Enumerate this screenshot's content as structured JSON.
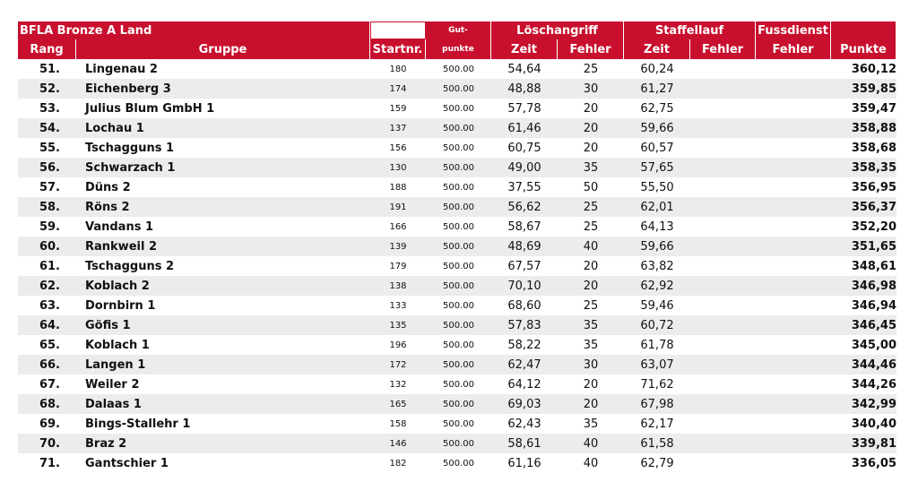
{
  "header": {
    "title": "BFLA Bronze A Land",
    "gut_top": "Gut-",
    "loeschangriff": "Löschangriff",
    "staffellauf": "Staffellauf",
    "fussdienst": "Fussdienst",
    "columns": [
      "Rang",
      "Gruppe",
      "Startnr.",
      "punkte",
      "Zeit",
      "Fehler",
      "Zeit",
      "Fehler",
      "Fehler",
      "Punkte"
    ]
  },
  "table": {
    "rows": [
      [
        "51.",
        "Lingenau 2",
        "180",
        "500.00",
        "54,64",
        "25",
        "60,24",
        "360,12"
      ],
      [
        "52.",
        "Eichenberg 3",
        "174",
        "500.00",
        "48,88",
        "30",
        "61,27",
        "359,85"
      ],
      [
        "53.",
        "Julius Blum GmbH 1",
        "159",
        "500.00",
        "57,78",
        "20",
        "62,75",
        "359,47"
      ],
      [
        "54.",
        "Lochau 1",
        "137",
        "500.00",
        "61,46",
        "20",
        "59,66",
        "358,88"
      ],
      [
        "55.",
        "Tschagguns 1",
        "156",
        "500.00",
        "60,75",
        "20",
        "60,57",
        "358,68"
      ],
      [
        "56.",
        "Schwarzach 1",
        "130",
        "500.00",
        "49,00",
        "35",
        "57,65",
        "358,35"
      ],
      [
        "57.",
        "Düns 2",
        "188",
        "500.00",
        "37,55",
        "50",
        "55,50",
        "356,95"
      ],
      [
        "58.",
        "Röns 2",
        "191",
        "500.00",
        "56,62",
        "25",
        "62,01",
        "356,37"
      ],
      [
        "59.",
        "Vandans 1",
        "166",
        "500.00",
        "58,67",
        "25",
        "64,13",
        "352,20"
      ],
      [
        "60.",
        "Rankweil 2",
        "139",
        "500.00",
        "48,69",
        "40",
        "59,66",
        "351,65"
      ],
      [
        "61.",
        "Tschagguns 2",
        "179",
        "500.00",
        "67,57",
        "20",
        "63,82",
        "348,61"
      ],
      [
        "62.",
        "Koblach 2",
        "138",
        "500.00",
        "70,10",
        "20",
        "62,92",
        "346,98"
      ],
      [
        "63.",
        "Dornbirn 1",
        "133",
        "500.00",
        "68,60",
        "25",
        "59,46",
        "346,94"
      ],
      [
        "64.",
        "Göfis 1",
        "135",
        "500.00",
        "57,83",
        "35",
        "60,72",
        "346,45"
      ],
      [
        "65.",
        "Koblach 1",
        "196",
        "500.00",
        "58,22",
        "35",
        "61,78",
        "345,00"
      ],
      [
        "66.",
        "Langen 1",
        "172",
        "500.00",
        "62,47",
        "30",
        "63,07",
        "344,46"
      ],
      [
        "67.",
        "Weiler 2",
        "132",
        "500.00",
        "64,12",
        "20",
        "71,62",
        "344,26"
      ],
      [
        "68.",
        "Dalaas 1",
        "165",
        "500.00",
        "69,03",
        "20",
        "67,98",
        "342,99"
      ],
      [
        "69.",
        "Bings-Stallehr 1",
        "158",
        "500.00",
        "62,43",
        "35",
        "62,17",
        "340,40"
      ],
      [
        "70.",
        "Braz 2",
        "146",
        "500.00",
        "58,61",
        "40",
        "61,58",
        "339,81"
      ],
      [
        "71.",
        "Gantschier 1",
        "182",
        "500.00",
        "61,16",
        "40",
        "62,79",
        "336,05"
      ]
    ]
  }
}
